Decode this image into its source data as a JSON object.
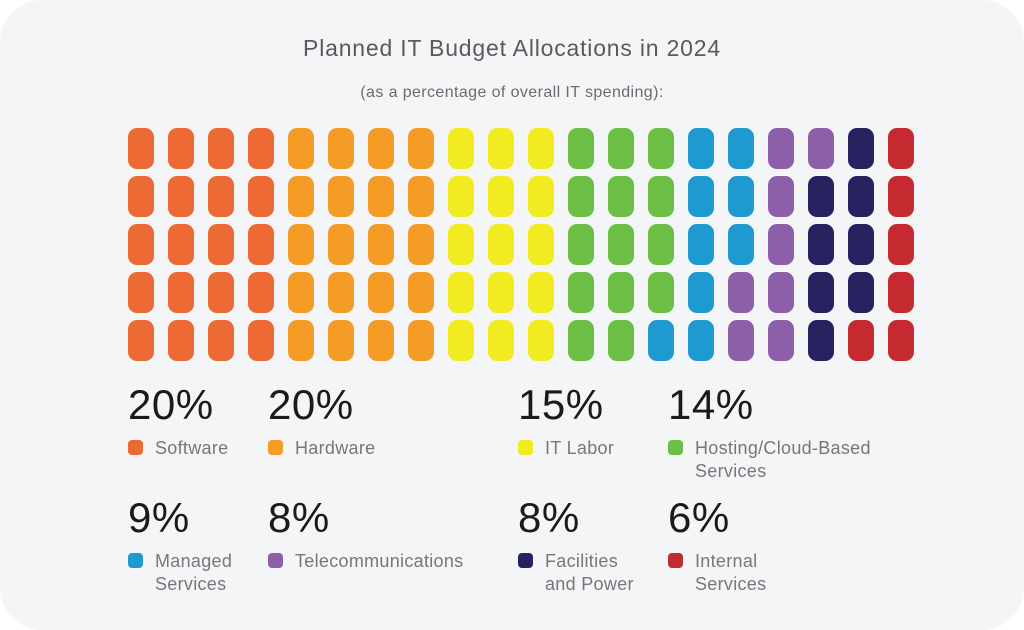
{
  "page": {
    "background": "#FFFFFF",
    "card_background": "#F4F5F7"
  },
  "colors": {
    "title": "#595A5D",
    "subtitle": "#6B6C6F",
    "percent_text": "#1A1A1C",
    "label_text": "#76777A"
  },
  "chart_data": {
    "type": "waffle",
    "title": "Planned IT Budget Allocations in 2024",
    "subtitle": "(as a percentage of overall IT spending):",
    "grid": {
      "rows": 5,
      "columns": 20,
      "tile_unit_percent": 1,
      "fill_order": "column-major, top to bottom, left to right"
    },
    "total_percent": 100,
    "legend_position": "below chart, 4 columns x 2 rows",
    "categories": [
      {
        "name": "Software",
        "value": 20,
        "pct_label": "20%",
        "legend_label": "Software",
        "color": "#EE6A35"
      },
      {
        "name": "Hardware",
        "value": 20,
        "pct_label": "20%",
        "legend_label": "Hardware",
        "color": "#F59C27"
      },
      {
        "name": "IT Labor",
        "value": 15,
        "pct_label": "15%",
        "legend_label": "IT Labor",
        "color": "#F3EB21"
      },
      {
        "name": "Hosting/Cloud-Based Services",
        "value": 14,
        "pct_label": "14%",
        "legend_label": "Hosting/Cloud-Based\nServices",
        "color": "#6CBE45"
      },
      {
        "name": "Managed Services",
        "value": 9,
        "pct_label": "9%",
        "legend_label": "Managed\nServices",
        "color": "#1F9AD0"
      },
      {
        "name": "Telecommunications",
        "value": 8,
        "pct_label": "8%",
        "legend_label": "Telecommunications",
        "color": "#8C5FA8"
      },
      {
        "name": "Facilities and Power",
        "value": 8,
        "pct_label": "8%",
        "legend_label": "Facilities\nand Power",
        "color": "#282160"
      },
      {
        "name": "Internal Services",
        "value": 6,
        "pct_label": "6%",
        "legend_label": "Internal\nServices",
        "color": "#C42A30"
      }
    ]
  }
}
